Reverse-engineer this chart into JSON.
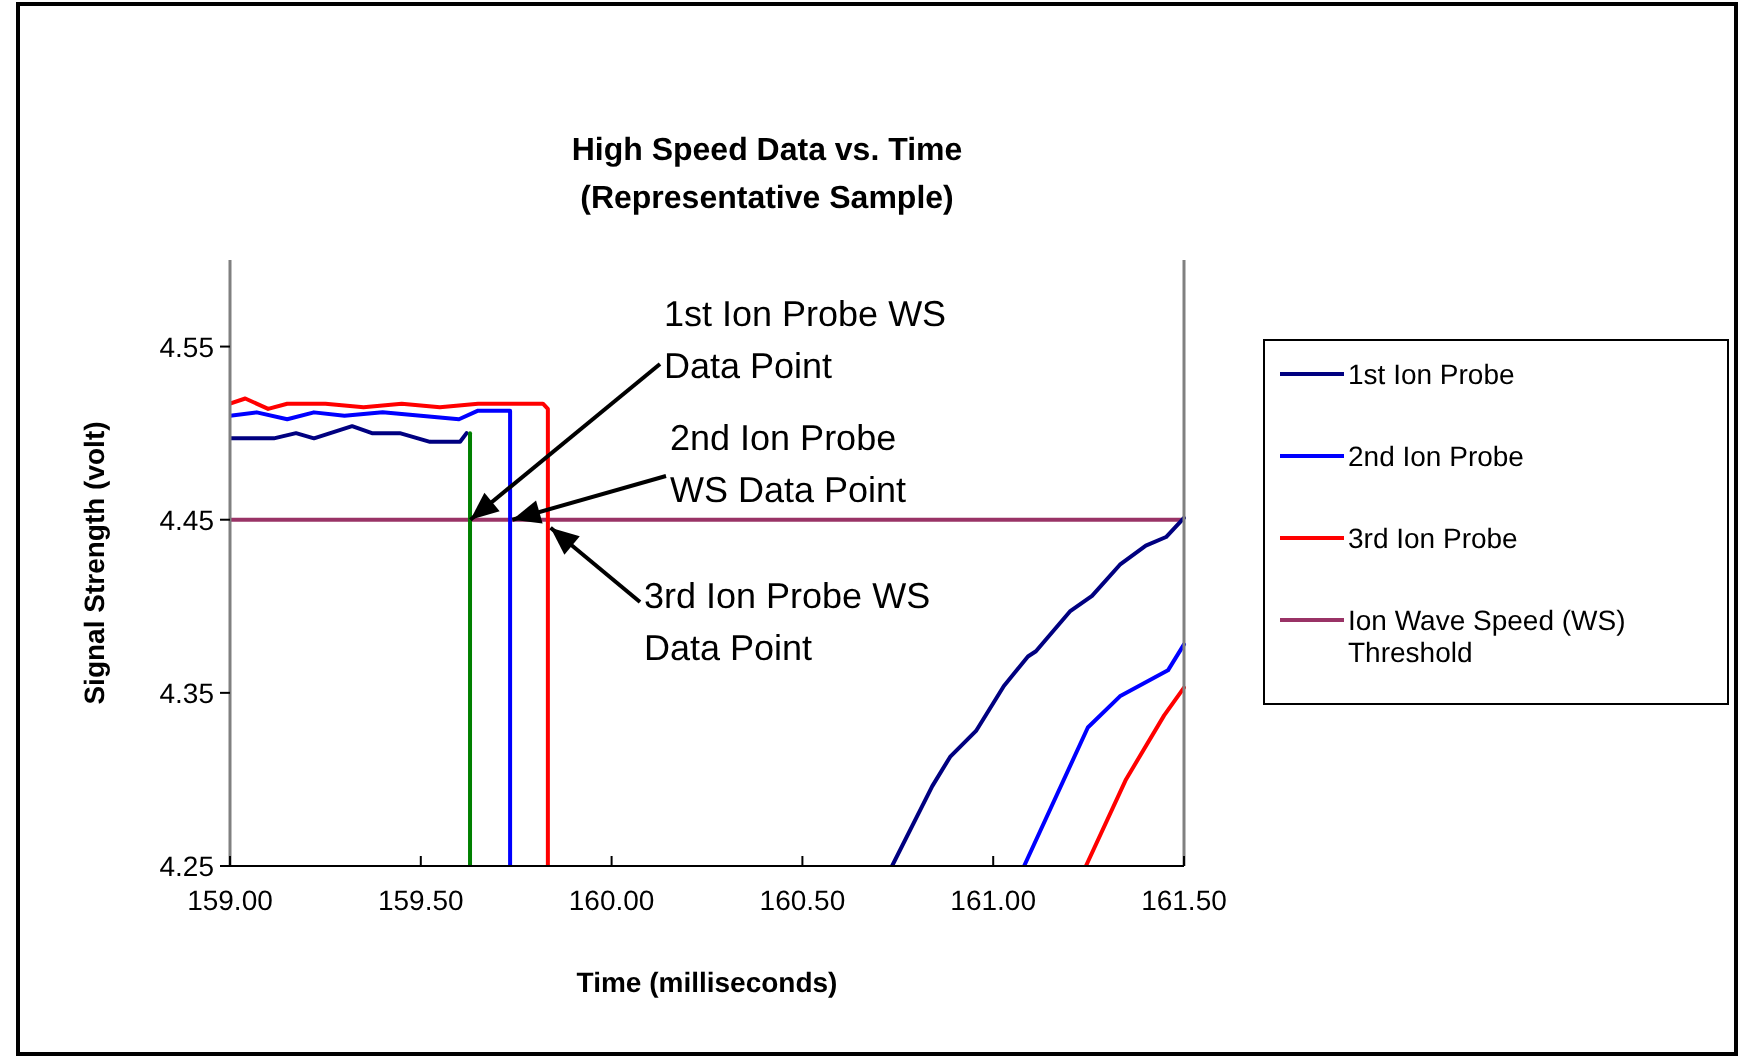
{
  "chart_data": {
    "type": "line",
    "title": "High Speed Data vs. Time",
    "subtitle": "(Representative Sample)",
    "xlabel": "Time (milliseconds)",
    "ylabel": "Signal Strength (volt)",
    "xlim": [
      159,
      161.5
    ],
    "xticks": [
      {
        "value": 159,
        "label": "159.00"
      },
      {
        "value": 159.5,
        "label": "159.50"
      },
      {
        "value": 160,
        "label": "160.00"
      },
      {
        "value": 160.5,
        "label": "160.50"
      },
      {
        "value": 161,
        "label": "161.00"
      },
      {
        "value": 161.5,
        "label": "161.50"
      }
    ],
    "ylim": [
      4.25,
      4.6
    ],
    "yticks": [
      4.25,
      4.35,
      4.45,
      4.55
    ],
    "grid": false,
    "legend": "right",
    "marker": "none",
    "line_style": "solid",
    "series": [
      {
        "name": "1st Ion Probe",
        "color": "#000080",
        "x": [
          159,
          159.115,
          159.173,
          159.22,
          159.32,
          159.372,
          159.445,
          159.524,
          159.603,
          159.62,
          159.7,
          160.735,
          160.84,
          160.887,
          160.955,
          161.028,
          161.091,
          161.112,
          161.201,
          161.259,
          161.332,
          161.4,
          161.453,
          161.5
        ],
        "values": [
          4.497,
          4.497,
          4.5,
          4.497,
          4.504,
          4.5,
          4.5,
          4.495,
          4.495,
          4.5,
          null,
          4.25,
          4.296,
          4.313,
          4.328,
          4.354,
          4.371,
          4.374,
          4.397,
          4.406,
          4.424,
          4.435,
          4.44,
          4.451
        ]
      },
      {
        "name": "2nd Ion Probe",
        "color": "#0000ff",
        "x": [
          159,
          159.07,
          159.15,
          159.22,
          159.3,
          159.4,
          159.5,
          159.6,
          159.65,
          159.725,
          159.734,
          159.734,
          159.9,
          161.081,
          161.248,
          161.332,
          161.458,
          161.5
        ],
        "values": [
          4.51,
          4.512,
          4.508,
          4.512,
          4.51,
          4.512,
          4.51,
          4.508,
          4.513,
          4.513,
          4.513,
          4.25,
          null,
          4.25,
          4.33,
          4.348,
          4.363,
          4.378
        ]
      },
      {
        "name": "3rd Ion Probe",
        "color": "#ff0000",
        "x": [
          159,
          159.04,
          159.1,
          159.15,
          159.25,
          159.35,
          159.45,
          159.55,
          159.65,
          159.75,
          159.82,
          159.833,
          159.833,
          160,
          161.243,
          161.348,
          161.448,
          161.5
        ],
        "values": [
          4.517,
          4.52,
          4.514,
          4.517,
          4.517,
          4.515,
          4.517,
          4.515,
          4.517,
          4.517,
          4.517,
          4.514,
          4.25,
          null,
          4.25,
          4.3,
          4.337,
          4.353
        ]
      },
      {
        "color": "#008000",
        "x": [
          159.629,
          159.629
        ],
        "values": [
          4.5,
          4.25
        ]
      }
    ],
    "ref_lines": [
      {
        "axis": "y",
        "value": 4.45,
        "label": "Ion Wave Speed (WS) Threshold",
        "color": "#993366"
      }
    ],
    "annotations": [
      {
        "text": "1st Ion Probe WS\nData Point",
        "x": 159.63,
        "y": 4.45
      },
      {
        "text": "2nd Ion Probe\nWS Data Point",
        "x": 159.74,
        "y": 4.45
      },
      {
        "text": "3rd Ion Probe WS\nData Point",
        "x": 159.84,
        "y": 4.45
      }
    ]
  }
}
